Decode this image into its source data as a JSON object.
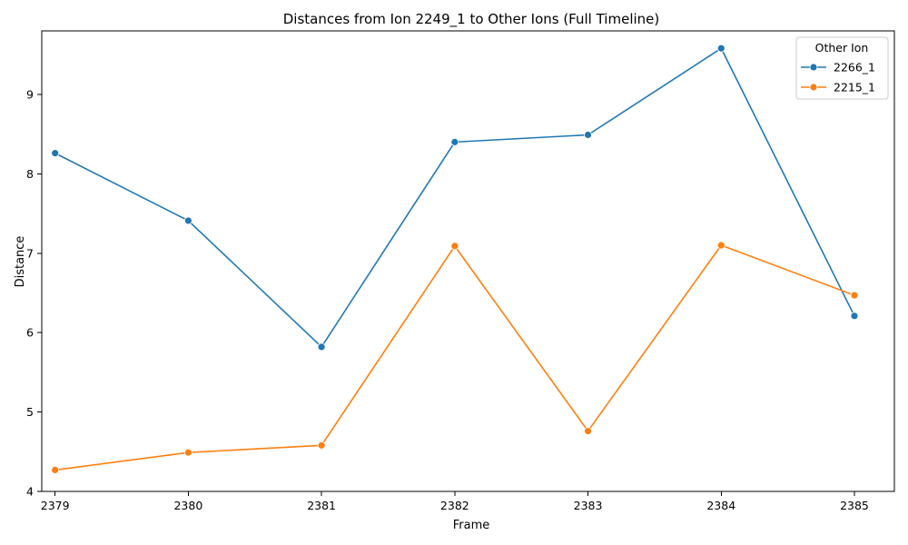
{
  "chart_data": {
    "type": "line",
    "title": "Distances from Ion 2249_1 to Other Ions (Full Timeline)",
    "xlabel": "Frame",
    "ylabel": "Distance",
    "x": [
      2379,
      2380,
      2381,
      2382,
      2383,
      2384,
      2385
    ],
    "x_tick_labels": [
      "2379",
      "2380",
      "2381",
      "2382",
      "2383",
      "2384",
      "2385"
    ],
    "xlim": [
      2378.9,
      2385.3
    ],
    "ylim": [
      4,
      9.8
    ],
    "y_ticks": [
      4,
      5,
      6,
      7,
      8,
      9
    ],
    "y_tick_labels": [
      "4",
      "5",
      "6",
      "7",
      "8",
      "9"
    ],
    "grid": false,
    "legend": {
      "title": "Other Ion",
      "placement": "top-right"
    },
    "series": [
      {
        "name": "2266_1",
        "color": "#1f77b4",
        "values": [
          8.26,
          7.41,
          5.82,
          8.4,
          8.49,
          9.58,
          6.21
        ]
      },
      {
        "name": "2215_1",
        "color": "#ff7f0e",
        "values": [
          4.27,
          4.49,
          4.58,
          7.09,
          4.76,
          7.1,
          6.47
        ]
      }
    ]
  }
}
